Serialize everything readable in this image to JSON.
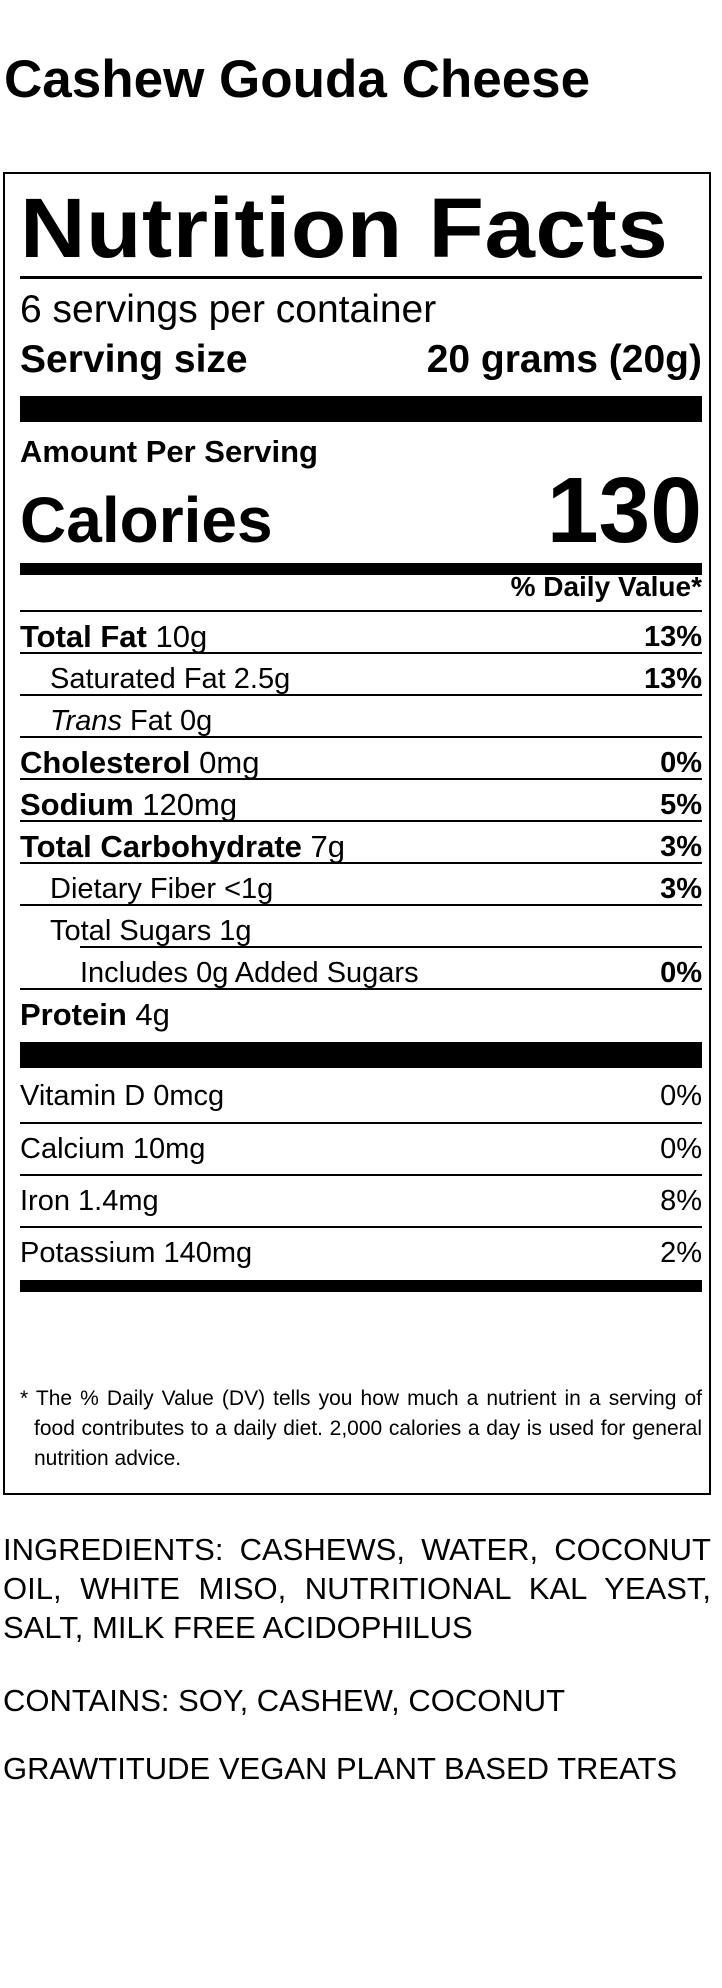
{
  "product": {
    "name": "Cashew Gouda Cheese"
  },
  "label": {
    "title": "Nutrition Facts",
    "servings_per_container": "6 servings per container",
    "serving_size_label": "Serving size",
    "serving_size_value": "20 grams (20g)",
    "amount_per_serving": "Amount Per Serving",
    "calories_label": "Calories",
    "calories_value": "130",
    "daily_value_header": "% Daily Value*",
    "nutrients": [
      {
        "name": "Total Fat",
        "amount": "10g",
        "dv": "13%"
      },
      {
        "name": "Saturated Fat",
        "amount": "2.5g",
        "dv": "13%"
      },
      {
        "name_italic": "Trans",
        "name": "Fat",
        "amount": "0g",
        "dv": ""
      },
      {
        "name": "Cholesterol",
        "amount": "0mg",
        "dv": "0%"
      },
      {
        "name": "Sodium",
        "amount": "120mg",
        "dv": "5%"
      },
      {
        "name": "Total Carbohydrate",
        "amount": "7g",
        "dv": "3%"
      },
      {
        "name": "Dietary Fiber",
        "amount": "<1g",
        "dv": "3%"
      },
      {
        "name": "Total Sugars",
        "amount": "1g",
        "dv": ""
      },
      {
        "name": "Includes 0g Added Sugars",
        "amount": "",
        "dv": "0%"
      },
      {
        "name": "Protein",
        "amount": "4g",
        "dv": ""
      }
    ],
    "vitamins": [
      {
        "name": "Vitamin D",
        "amount": "0mcg",
        "dv": "0%"
      },
      {
        "name": "Calcium",
        "amount": "10mg",
        "dv": "0%"
      },
      {
        "name": "Iron",
        "amount": "1.4mg",
        "dv": "8%"
      },
      {
        "name": "Potassium",
        "amount": "140mg",
        "dv": "2%"
      }
    ],
    "footnote": "* The % Daily Value (DV) tells you how much a nutrient in a serving of food contributes to a daily diet. 2,000 calories a day is used for general nutrition advice."
  },
  "ingredients": "INGREDIENTS: CASHEWS, WATER, COCONUT OIL, WHITE MISO, NUTRITIONAL KAL YEAST, SALT, MILK FREE ACIDOPHILUS",
  "contains": "CONTAINS: SOY, CASHEW, COCONUT",
  "brand_line": "GRAWTITUDE VEGAN PLANT BASED TREATS"
}
